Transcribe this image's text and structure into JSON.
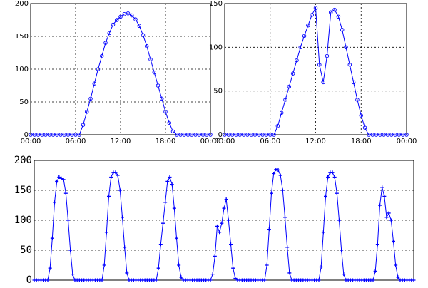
{
  "chart_data": [
    {
      "type": "line",
      "marker": "o",
      "color": "#0000ff",
      "grid": true,
      "xlim": [
        0,
        24
      ],
      "ylim": [
        0,
        200
      ],
      "xticks": [
        {
          "value": 0,
          "label": "00:00"
        },
        {
          "value": 6,
          "label": "06:00"
        },
        {
          "value": 12,
          "label": "12:00"
        },
        {
          "value": 18,
          "label": "18:00"
        },
        {
          "value": 24,
          "label": "00:00"
        }
      ],
      "yticks": [
        0,
        50,
        100,
        150,
        200
      ],
      "x": [
        0,
        0.5,
        1,
        1.5,
        2,
        2.5,
        3,
        3.5,
        4,
        4.5,
        5,
        5.5,
        6,
        6.5,
        7,
        7.5,
        8,
        8.5,
        9,
        9.5,
        10,
        10.5,
        11,
        11.5,
        12,
        12.5,
        13,
        13.5,
        14,
        14.5,
        15,
        15.5,
        16,
        16.5,
        17,
        17.5,
        18,
        18.5,
        19,
        19.5,
        20,
        20.5,
        21,
        21.5,
        22,
        22.5,
        23,
        23.5,
        24
      ],
      "values": [
        0,
        0,
        0,
        0,
        0,
        0,
        0,
        0,
        0,
        0,
        0,
        0,
        0,
        0,
        15,
        35,
        55,
        78,
        100,
        120,
        140,
        155,
        168,
        175,
        180,
        184,
        185,
        182,
        176,
        166,
        152,
        135,
        115,
        95,
        75,
        55,
        35,
        18,
        5,
        0,
        0,
        0,
        0,
        0,
        0,
        0,
        0,
        0,
        0
      ]
    },
    {
      "type": "line",
      "marker": "o",
      "color": "#0000ff",
      "grid": true,
      "xlim": [
        0,
        24
      ],
      "ylim": [
        0,
        150
      ],
      "xticks": [
        {
          "value": 0,
          "label": "00:00"
        },
        {
          "value": 6,
          "label": "06:00"
        },
        {
          "value": 12,
          "label": "12:00"
        },
        {
          "value": 18,
          "label": "18:00"
        },
        {
          "value": 24,
          "label": "00:00"
        }
      ],
      "yticks": [
        0,
        50,
        100,
        150
      ],
      "x": [
        0,
        0.5,
        1,
        1.5,
        2,
        2.5,
        3,
        3.5,
        4,
        4.5,
        5,
        5.5,
        6,
        6.5,
        7,
        7.5,
        8,
        8.5,
        9,
        9.5,
        10,
        10.5,
        11,
        11.5,
        12,
        12.5,
        13,
        13.5,
        14,
        14.5,
        15,
        15.5,
        16,
        16.5,
        17,
        17.5,
        18,
        18.5,
        19,
        19.5,
        20,
        20.5,
        21,
        21.5,
        22,
        22.5,
        23,
        23.5,
        24
      ],
      "values": [
        0,
        0,
        0,
        0,
        0,
        0,
        0,
        0,
        0,
        0,
        0,
        0,
        0,
        0,
        10,
        25,
        40,
        55,
        70,
        85,
        100,
        113,
        125,
        137,
        145,
        80,
        60,
        90,
        140,
        143,
        135,
        120,
        100,
        80,
        60,
        40,
        22,
        8,
        0,
        0,
        0,
        0,
        0,
        0,
        0,
        0,
        0,
        0,
        0
      ]
    },
    {
      "type": "line",
      "marker": "+",
      "color": "#0000ff",
      "grid": true,
      "xlim": [
        0,
        168
      ],
      "ylim": [
        0,
        200
      ],
      "yticks": [
        0,
        50,
        100,
        150,
        200
      ],
      "x": [
        0,
        1,
        2,
        3,
        4,
        5,
        6,
        7,
        8,
        9,
        10,
        11,
        12,
        13,
        14,
        15,
        16,
        17,
        18,
        19,
        20,
        21,
        22,
        23,
        24,
        25,
        26,
        27,
        28,
        29,
        30,
        31,
        32,
        33,
        34,
        35,
        36,
        37,
        38,
        39,
        40,
        41,
        42,
        43,
        44,
        45,
        46,
        47,
        48,
        49,
        50,
        51,
        52,
        53,
        54,
        55,
        56,
        57,
        58,
        59,
        60,
        61,
        62,
        63,
        64,
        65,
        66,
        67,
        68,
        69,
        70,
        71,
        72,
        73,
        74,
        75,
        76,
        77,
        78,
        79,
        80,
        81,
        82,
        83,
        84,
        85,
        86,
        87,
        88,
        89,
        90,
        91,
        92,
        93,
        94,
        95,
        96,
        97,
        98,
        99,
        100,
        101,
        102,
        103,
        104,
        105,
        106,
        107,
        108,
        109,
        110,
        111,
        112,
        113,
        114,
        115,
        116,
        117,
        118,
        119,
        120,
        121,
        122,
        123,
        124,
        125,
        126,
        127,
        128,
        129,
        130,
        131,
        132,
        133,
        134,
        135,
        136,
        137,
        138,
        139,
        140,
        141,
        142,
        143,
        144,
        145,
        146,
        147,
        148,
        149,
        150,
        151,
        152,
        153,
        154,
        155,
        156,
        157,
        158,
        159,
        160,
        161,
        162,
        163,
        164,
        165,
        166,
        167,
        168
      ],
      "values": [
        0,
        0,
        0,
        0,
        0,
        0,
        0,
        20,
        70,
        130,
        165,
        172,
        170,
        168,
        145,
        100,
        50,
        10,
        0,
        0,
        0,
        0,
        0,
        0,
        0,
        0,
        0,
        0,
        0,
        0,
        0,
        25,
        80,
        140,
        172,
        180,
        180,
        175,
        150,
        105,
        55,
        12,
        0,
        0,
        0,
        0,
        0,
        0,
        0,
        0,
        0,
        0,
        0,
        0,
        0,
        20,
        60,
        95,
        130,
        165,
        172,
        160,
        120,
        70,
        25,
        5,
        0,
        0,
        0,
        0,
        0,
        0,
        0,
        0,
        0,
        0,
        0,
        0,
        0,
        10,
        40,
        90,
        80,
        95,
        120,
        135,
        100,
        60,
        20,
        3,
        0,
        0,
        0,
        0,
        0,
        0,
        0,
        0,
        0,
        0,
        0,
        0,
        0,
        25,
        85,
        145,
        178,
        185,
        184,
        175,
        150,
        105,
        55,
        12,
        0,
        0,
        0,
        0,
        0,
        0,
        0,
        0,
        0,
        0,
        0,
        0,
        0,
        22,
        80,
        140,
        172,
        180,
        180,
        172,
        145,
        100,
        50,
        10,
        0,
        0,
        0,
        0,
        0,
        0,
        0,
        0,
        0,
        0,
        0,
        0,
        0,
        15,
        60,
        125,
        155,
        140,
        105,
        112,
        100,
        65,
        25,
        5,
        0,
        0,
        0,
        0,
        0,
        0,
        0
      ]
    }
  ]
}
